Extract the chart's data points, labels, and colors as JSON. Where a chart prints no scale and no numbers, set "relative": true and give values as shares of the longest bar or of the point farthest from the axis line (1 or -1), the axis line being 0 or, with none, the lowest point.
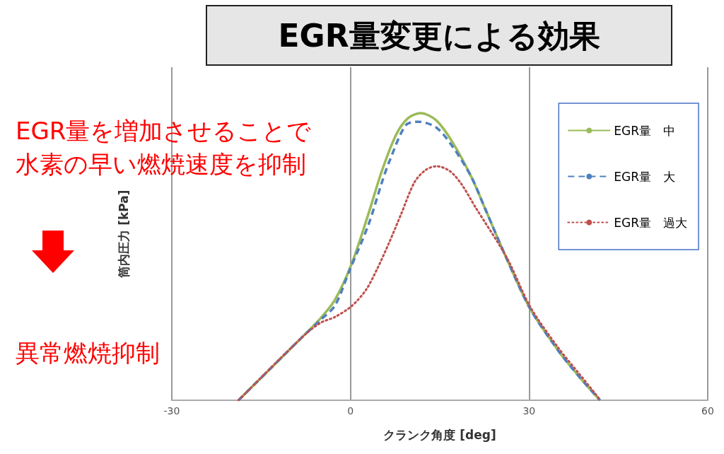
{
  "chart_data": {
    "type": "line",
    "title": "EGR量変更による効果",
    "xlabel": "クランク角度 [deg]",
    "ylabel": "筒内圧力 [kPa]",
    "relative": true,
    "xlim": [
      -30,
      60
    ],
    "xticks": [
      -30,
      0,
      30,
      60
    ],
    "grid": "x",
    "legend": "top right",
    "marker": "none",
    "annotations": [
      "EGR量を増加させることで",
      "水素の早い燃焼速度を抑制",
      "異常燃焼抑制"
    ],
    "series": [
      {
        "name": "EGR量　中",
        "color": "#9bbb59",
        "line_style": "solid",
        "x": [
          -18.8,
          -8.1,
          -5,
          -2.6,
          0.2,
          3,
          5.3,
          7.7,
          9.7,
          11.8,
          14.4,
          17.1,
          20.3,
          22.7,
          26.3,
          30.2,
          35,
          38.5,
          41.9
        ],
        "values": [
          0,
          0.22,
          0.286,
          0.35,
          0.475,
          0.648,
          0.8,
          0.926,
          0.983,
          1,
          0.975,
          0.9,
          0.778,
          0.663,
          0.49,
          0.318,
          0.17,
          0.08,
          0
        ]
      },
      {
        "name": "EGR量　大",
        "color": "#4f81bd",
        "line_style": "dashed",
        "x": [
          -18.8,
          -8.1,
          -5,
          -2.6,
          -0.2,
          3,
          5.3,
          6.5,
          9.3,
          11.5,
          14.4,
          17.1,
          20.3,
          22.7,
          26.3,
          30.2,
          35,
          38.5,
          41.9
        ],
        "values": [
          0,
          0.22,
          0.28,
          0.33,
          0.45,
          0.61,
          0.76,
          0.83,
          0.958,
          0.97,
          0.95,
          0.885,
          0.778,
          0.663,
          0.49,
          0.318,
          0.17,
          0.08,
          0
        ]
      },
      {
        "name": "EGR量　過大",
        "color": "#c0504d",
        "line_style": "dotted",
        "x": [
          -18.8,
          -8.1,
          -5,
          -2.6,
          0.2,
          2.6,
          4.5,
          6.5,
          8.5,
          10.8,
          12.7,
          14.5,
          16.7,
          18.6,
          21,
          26.3,
          30.2,
          35,
          38.5,
          42
        ],
        "values": [
          0,
          0.22,
          0.27,
          0.29,
          0.328,
          0.384,
          0.458,
          0.549,
          0.648,
          0.761,
          0.803,
          0.815,
          0.798,
          0.754,
          0.672,
          0.495,
          0.325,
          0.18,
          0.09,
          0
        ]
      }
    ]
  }
}
